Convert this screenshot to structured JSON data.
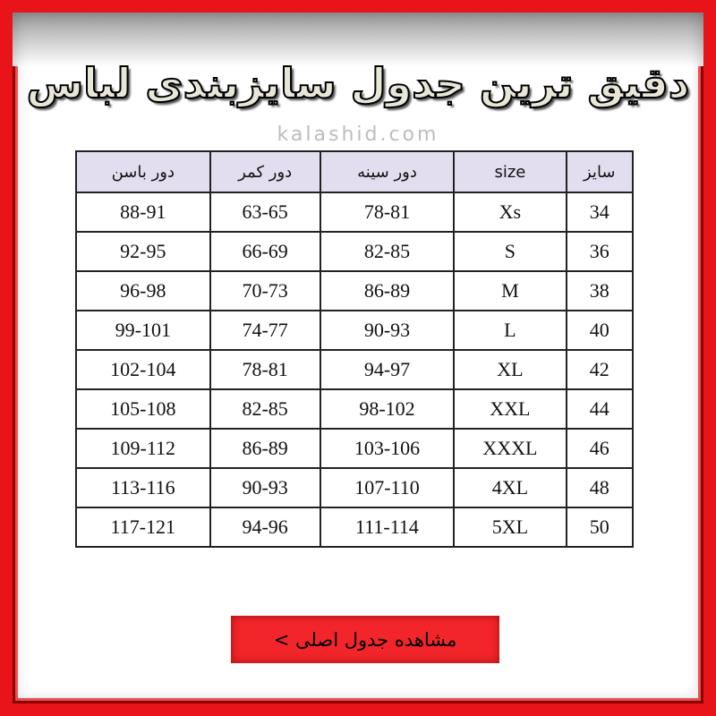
{
  "title": "دقیق ترین جدول سایزبندی لباس",
  "watermark": "kalashid.com",
  "table": {
    "headers": [
      "سایز",
      "size",
      "دور سینه",
      "دور کمر",
      "دور باسن"
    ],
    "rows": [
      [
        "34",
        "Xs",
        "78-81",
        "63-65",
        "88-91"
      ],
      [
        "36",
        "S",
        "82-85",
        "66-69",
        "92-95"
      ],
      [
        "38",
        "M",
        "86-89",
        "70-73",
        "96-98"
      ],
      [
        "40",
        "L",
        "90-93",
        "74-77",
        "99-101"
      ],
      [
        "42",
        "XL",
        "94-97",
        "78-81",
        "102-104"
      ],
      [
        "44",
        "XXL",
        "98-102",
        "82-85",
        "105-108"
      ],
      [
        "46",
        "XXXL",
        "103-106",
        "86-89",
        "109-112"
      ],
      [
        "48",
        "4XL",
        "107-110",
        "90-93",
        "113-116"
      ],
      [
        "50",
        "5XL",
        "111-114",
        "94-96",
        "117-121"
      ]
    ]
  },
  "button": {
    "label": "مشاهده جدول اصلی >"
  },
  "colors": {
    "frame": "#e8141a",
    "header_bg": "#e2def0",
    "button": "#f2262a"
  }
}
